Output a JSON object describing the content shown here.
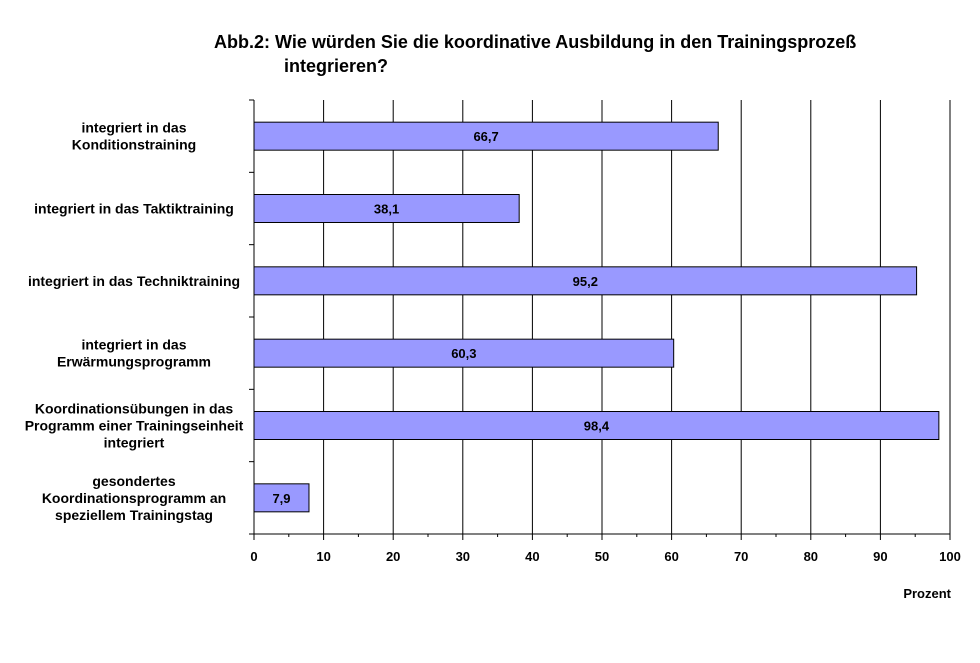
{
  "chart_data": {
    "type": "bar",
    "orientation": "horizontal",
    "title_line1": "Abb.2: Wie würden Sie die koordinative Ausbildung in den Trainingsprozeß",
    "title_line2": "integrieren?",
    "xlabel": "Prozent",
    "xlim": [
      0,
      100
    ],
    "xticks": [
      "0",
      "10",
      "20",
      "30",
      "40",
      "50",
      "60",
      "70",
      "80",
      "90",
      "100"
    ],
    "grid": "vertical",
    "bar_color": "#9999ff",
    "categories": [
      [
        "integriert in das",
        "Konditionstraining"
      ],
      [
        "integriert in das Taktiktraining"
      ],
      [
        "integriert in das Techniktraining"
      ],
      [
        "integriert in das",
        "Erwärmungsprogramm"
      ],
      [
        "Koordinationsübungen in das",
        "Programm einer Trainingseinheit",
        "integriert"
      ],
      [
        "gesondertes",
        "Koordinationsprogramm an",
        "speziellem Trainingstag"
      ]
    ],
    "values": [
      66.7,
      38.1,
      95.2,
      60.3,
      98.4,
      7.9
    ],
    "value_labels": [
      "66,7",
      "38,1",
      "95,2",
      "60,3",
      "98,4",
      "7,9"
    ]
  }
}
